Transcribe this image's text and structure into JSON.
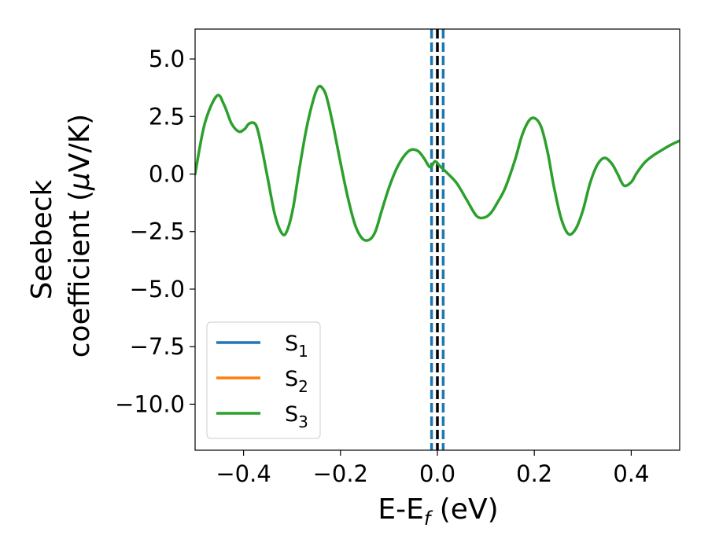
{
  "chart_data": {
    "type": "line",
    "title": "",
    "xlabel": "E-E",
    "xlabel_sub": "f",
    "xlabel_unit": " (eV)",
    "ylabel_line1": "Seebeck",
    "ylabel_line2": "coefficient  (",
    "ylabel_mu": "μ",
    "ylabel_unit": "V/K)",
    "xlim": [
      -0.5,
      0.5
    ],
    "ylim": [
      -12.0,
      6.3
    ],
    "x_ticks": [
      {
        "value": -0.4,
        "label": "−0.4"
      },
      {
        "value": -0.2,
        "label": "−0.2"
      },
      {
        "value": 0.0,
        "label": "0.0"
      },
      {
        "value": 0.2,
        "label": "0.2"
      },
      {
        "value": 0.4,
        "label": "0.4"
      }
    ],
    "y_ticks": [
      {
        "value": 5.0,
        "label": "5.0"
      },
      {
        "value": 2.5,
        "label": "2.5"
      },
      {
        "value": 0.0,
        "label": "0.0"
      },
      {
        "value": -2.5,
        "label": "−2.5"
      },
      {
        "value": -5.0,
        "label": "−5.0"
      },
      {
        "value": -7.5,
        "label": "−7.5"
      },
      {
        "value": -10.0,
        "label": "−10.0"
      }
    ],
    "grid": false,
    "legend_position": "lower-left",
    "x": [
      -0.5,
      -0.48,
      -0.455,
      -0.44,
      -0.425,
      -0.41,
      -0.398,
      -0.388,
      -0.375,
      -0.365,
      -0.35,
      -0.335,
      -0.32,
      -0.31,
      -0.298,
      -0.285,
      -0.27,
      -0.255,
      -0.245,
      -0.236,
      -0.228,
      -0.215,
      -0.2,
      -0.185,
      -0.17,
      -0.155,
      -0.14,
      -0.128,
      -0.115,
      -0.1,
      -0.085,
      -0.07,
      -0.055,
      -0.04,
      -0.028,
      -0.015,
      -0.005,
      0.005,
      0.02,
      0.04,
      0.06,
      0.08,
      0.095,
      0.11,
      0.125,
      0.14,
      0.16,
      0.175,
      0.19,
      0.203,
      0.215,
      0.228,
      0.24,
      0.255,
      0.27,
      0.285,
      0.3,
      0.315,
      0.33,
      0.345,
      0.36,
      0.372,
      0.385,
      0.4,
      0.41,
      0.42,
      0.43,
      0.445,
      0.46,
      0.48,
      0.5
    ],
    "series": [
      {
        "name": "S",
        "sub": "1",
        "color": "#1f77b4",
        "values": null
      },
      {
        "name": "S",
        "sub": "2",
        "color": "#ff7f0e",
        "values": null
      },
      {
        "name": "S",
        "sub": "3",
        "color": "#2ca02c",
        "values": [
          0.0,
          2.2,
          3.4,
          3.0,
          2.2,
          1.85,
          1.95,
          2.2,
          2.15,
          1.4,
          -0.2,
          -1.8,
          -2.6,
          -2.45,
          -1.5,
          0.2,
          2.0,
          3.3,
          3.8,
          3.7,
          3.3,
          2.1,
          0.5,
          -1.0,
          -2.2,
          -2.8,
          -2.85,
          -2.5,
          -1.6,
          -0.6,
          0.2,
          0.75,
          1.05,
          1.0,
          0.7,
          0.3,
          0.55,
          0.35,
          0.05,
          -0.4,
          -1.1,
          -1.8,
          -1.9,
          -1.7,
          -1.2,
          -0.6,
          0.6,
          1.7,
          2.35,
          2.4,
          2.0,
          0.9,
          -0.5,
          -1.9,
          -2.6,
          -2.4,
          -1.6,
          -0.4,
          0.4,
          0.7,
          0.45,
          0.0,
          -0.5,
          -0.35,
          0.0,
          0.3,
          0.55,
          0.8,
          1.0,
          1.25,
          1.45
        ]
      }
    ],
    "vlines": [
      {
        "x": -0.012,
        "color": "#1f77b4",
        "style": "dashed"
      },
      {
        "x": 0.0,
        "color": "#000000",
        "style": "dashed"
      },
      {
        "x": 0.012,
        "color": "#1f77b4",
        "style": "dashed"
      }
    ]
  }
}
